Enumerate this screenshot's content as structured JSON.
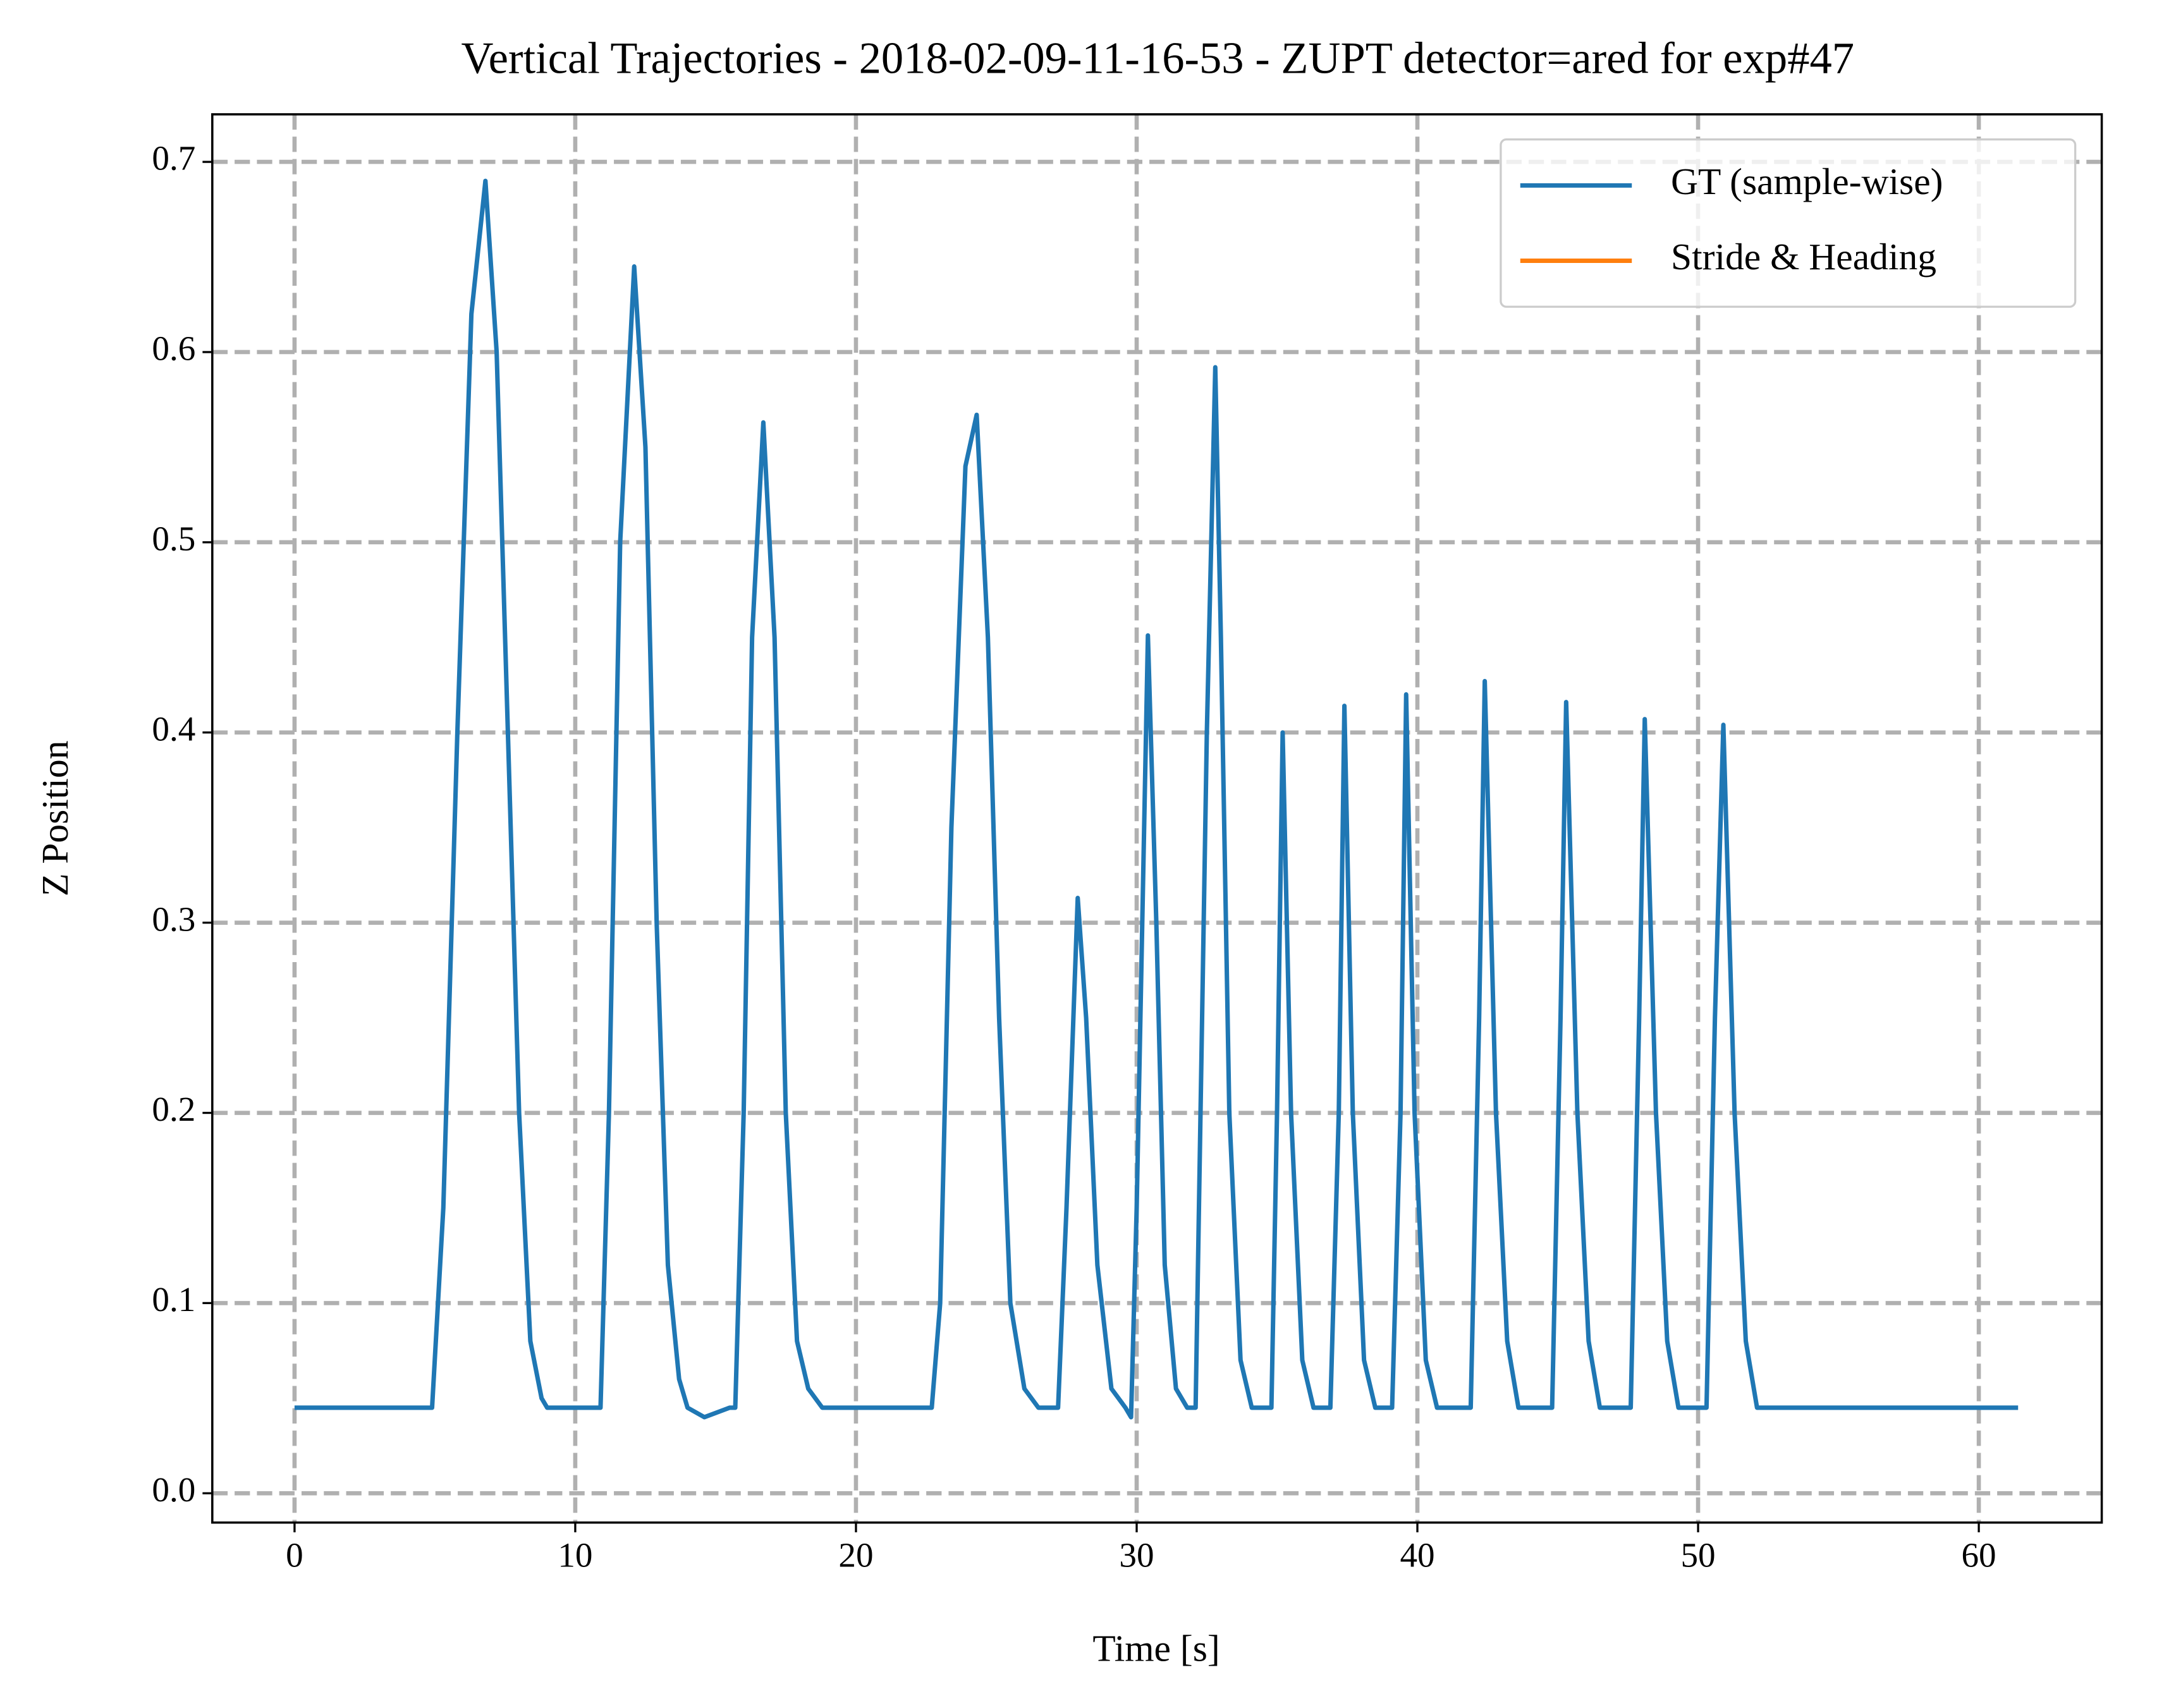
{
  "chart_data": {
    "type": "line",
    "title": "Vertical Trajectories - 2018-02-09-11-16-53 - ZUPT detector=ared for exp#47",
    "xlabel": "Time [s]",
    "ylabel": "Z Position",
    "xlim": [
      -2.93,
      64.38
    ],
    "ylim": [
      -0.0154,
      0.725
    ],
    "xticks": [
      0,
      10,
      20,
      30,
      40,
      50,
      60
    ],
    "yticks": [
      {
        "value": 0,
        "label": "0.0"
      },
      0.1,
      0.2,
      0.3,
      0.4,
      0.5,
      0.6,
      0.7
    ],
    "grid": true,
    "legend": "upper right",
    "series": [
      {
        "name": "GT (sample-wise)",
        "color": "#1f77b4",
        "x": [
          0,
          1.5,
          4.9,
          5.3,
          5.8,
          6.3,
          6.8,
          7.2,
          7.6,
          8.0,
          8.4,
          8.8,
          9.0,
          10.9,
          11.2,
          11.6,
          12.1,
          12.5,
          12.9,
          13.3,
          13.7,
          14.0,
          14.6,
          15.5,
          15.7,
          16.0,
          16.3,
          16.7,
          17.1,
          17.5,
          17.9,
          18.3,
          18.8,
          22.7,
          23.0,
          23.4,
          23.9,
          24.3,
          24.7,
          25.1,
          25.5,
          26.0,
          26.5,
          27.2,
          27.5,
          27.9,
          28.2,
          28.6,
          29.1,
          29.6,
          29.8,
          30.0,
          30.4,
          30.7,
          31.0,
          31.4,
          31.8,
          32.1,
          32.5,
          32.8,
          33.0,
          33.3,
          33.7,
          34.1,
          34.8,
          35.0,
          35.2,
          35.5,
          35.9,
          36.3,
          36.9,
          37.2,
          37.4,
          37.7,
          38.1,
          38.5,
          39.1,
          39.4,
          39.6,
          39.9,
          40.3,
          40.7,
          41.9,
          42.2,
          42.4,
          42.8,
          43.2,
          43.6,
          44.8,
          45.1,
          45.3,
          45.7,
          46.1,
          46.5,
          47.6,
          47.9,
          48.1,
          48.5,
          48.9,
          49.3,
          50.3,
          50.6,
          50.9,
          51.3,
          51.7,
          52.1,
          61.4
        ],
        "values": [
          0.045,
          0.045,
          0.045,
          0.15,
          0.4,
          0.62,
          0.69,
          0.6,
          0.4,
          0.2,
          0.08,
          0.05,
          0.045,
          0.045,
          0.2,
          0.5,
          0.645,
          0.55,
          0.3,
          0.12,
          0.06,
          0.045,
          0.04,
          0.045,
          0.045,
          0.2,
          0.45,
          0.563,
          0.45,
          0.2,
          0.08,
          0.055,
          0.045,
          0.045,
          0.1,
          0.35,
          0.54,
          0.567,
          0.45,
          0.25,
          0.1,
          0.055,
          0.045,
          0.045,
          0.15,
          0.313,
          0.25,
          0.12,
          0.055,
          0.045,
          0.04,
          0.15,
          0.451,
          0.3,
          0.12,
          0.055,
          0.045,
          0.045,
          0.4,
          0.592,
          0.45,
          0.2,
          0.07,
          0.045,
          0.045,
          0.2,
          0.4,
          0.2,
          0.07,
          0.045,
          0.045,
          0.2,
          0.414,
          0.2,
          0.07,
          0.045,
          0.045,
          0.2,
          0.42,
          0.2,
          0.07,
          0.045,
          0.045,
          0.25,
          0.427,
          0.2,
          0.08,
          0.045,
          0.045,
          0.25,
          0.416,
          0.2,
          0.08,
          0.045,
          0.045,
          0.25,
          0.407,
          0.2,
          0.08,
          0.045,
          0.045,
          0.25,
          0.404,
          0.2,
          0.08,
          0.045,
          0.045
        ]
      },
      {
        "name": "Stride & Heading",
        "color": "#ff7f0e",
        "x": [],
        "values": []
      }
    ]
  }
}
